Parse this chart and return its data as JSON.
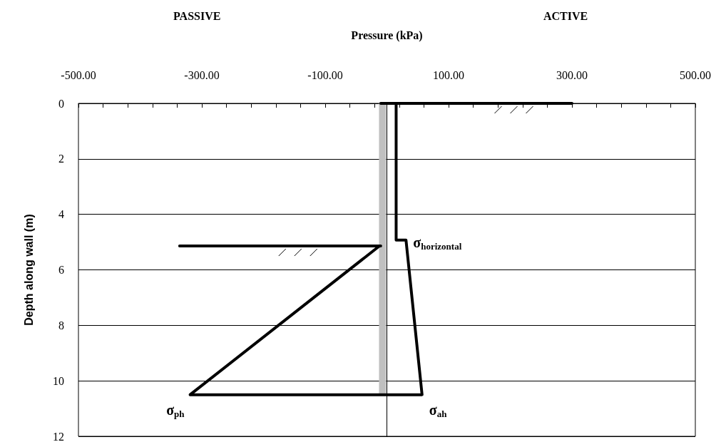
{
  "chart_data": {
    "type": "line",
    "xlabel": "Pressure (kPa)",
    "ylabel": "Depth along wall (m)",
    "annotations": [
      "PASSIVE",
      "ACTIVE",
      {
        "text": "σ$_{horizontal}$",
        "x": 31,
        "y": 4.93
      },
      {
        "text": "σ$_{ph}$",
        "x": -319,
        "y": 10.5
      },
      {
        "text": "σ$_{ah}$",
        "x": 57,
        "y": 10.5
      }
    ],
    "series": [
      {
        "color": "#c0c0c0",
        "x": [
          -7,
          -7
        ],
        "values": [
          0,
          10.5
        ]
      },
      {
        "color": "#000000",
        "x": [
          -10,
          300
        ],
        "values": [
          0,
          0
        ]
      },
      {
        "color": "#000000",
        "x": [
          15,
          15,
          31,
          57,
          -319,
          -12
        ],
        "values": [
          0,
          4.93,
          4.93,
          10.5,
          10.5,
          5.14
        ]
      },
      {
        "color": "#000000",
        "x": [
          -336,
          -10
        ],
        "values": [
          5.14,
          5.14
        ]
      }
    ],
    "xlim": [
      -500,
      500
    ],
    "xticks": [
      {
        "value": -500,
        "label": "-500.00"
      },
      {
        "value": -460,
        "label": null
      },
      {
        "value": -420,
        "label": null
      },
      {
        "value": -380,
        "label": null
      },
      {
        "value": -340,
        "label": null
      },
      {
        "value": -300,
        "label": "-300.00"
      },
      {
        "value": -260,
        "label": null
      },
      {
        "value": -220,
        "label": null
      },
      {
        "value": -180,
        "label": null
      },
      {
        "value": -140,
        "label": null
      },
      {
        "value": -100,
        "label": "-100.00"
      },
      {
        "value": -60,
        "label": null
      },
      {
        "value": -20,
        "label": null
      },
      {
        "value": 20,
        "label": null
      },
      {
        "value": 60,
        "label": null
      },
      {
        "value": 100,
        "label": "100.00"
      },
      {
        "value": 140,
        "label": null
      },
      {
        "value": 180,
        "label": null
      },
      {
        "value": 220,
        "label": null
      },
      {
        "value": 260,
        "label": null
      },
      {
        "value": 300,
        "label": "300.00"
      },
      {
        "value": 340,
        "label": null
      },
      {
        "value": 380,
        "label": null
      },
      {
        "value": 420,
        "label": null
      },
      {
        "value": 460,
        "label": null
      },
      {
        "value": 500,
        "label": "500.00"
      }
    ],
    "ylim": [
      12,
      0
    ],
    "yticks": [
      0,
      2,
      4,
      6,
      8,
      10,
      12
    ],
    "ref_lines": [
      {
        "axis": "x",
        "value": 0
      }
    ],
    "grid": "y",
    "marker": "none",
    "line_style": "solid"
  }
}
